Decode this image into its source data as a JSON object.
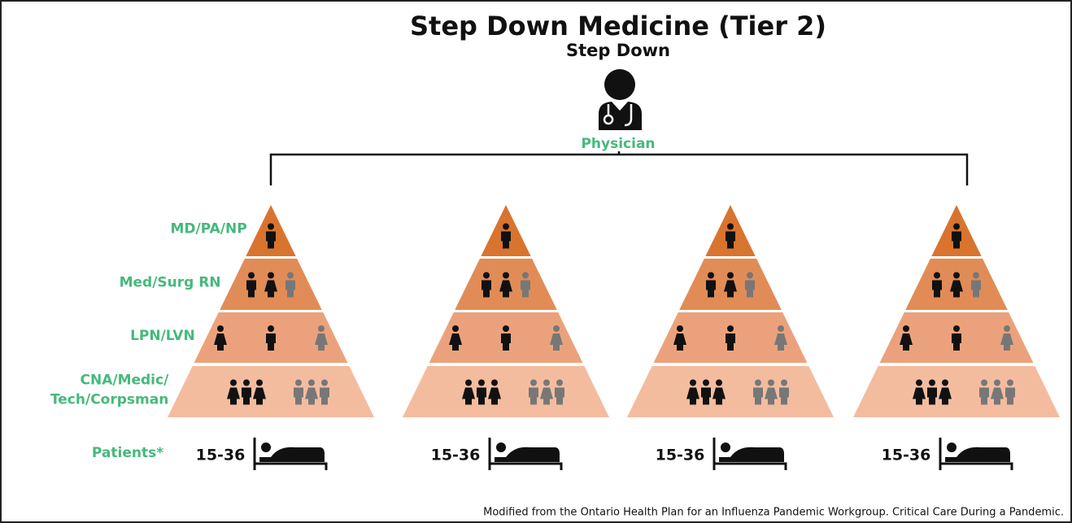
{
  "title": "Step Down Medicine (Tier 2)",
  "subtitle": "Step Down",
  "top_role": "Physician",
  "tiers": [
    {
      "lines": [
        "MD/PA/NP"
      ]
    },
    {
      "lines": [
        "Med/Surg RN"
      ]
    },
    {
      "lines": [
        "LPN/LVN"
      ]
    },
    {
      "lines": [
        "CNA/Medic/",
        "Tech/Corpsman"
      ]
    }
  ],
  "patients_label": "Patients*",
  "pyramids": [
    {
      "patients": "15-36"
    },
    {
      "patients": "15-36"
    },
    {
      "patients": "15-36"
    },
    {
      "patients": "15-36"
    }
  ],
  "footnote": "Modified from the Ontario Health Plan for an Influenza Pandemic Workgroup. Critical Care During a Pandemic."
}
